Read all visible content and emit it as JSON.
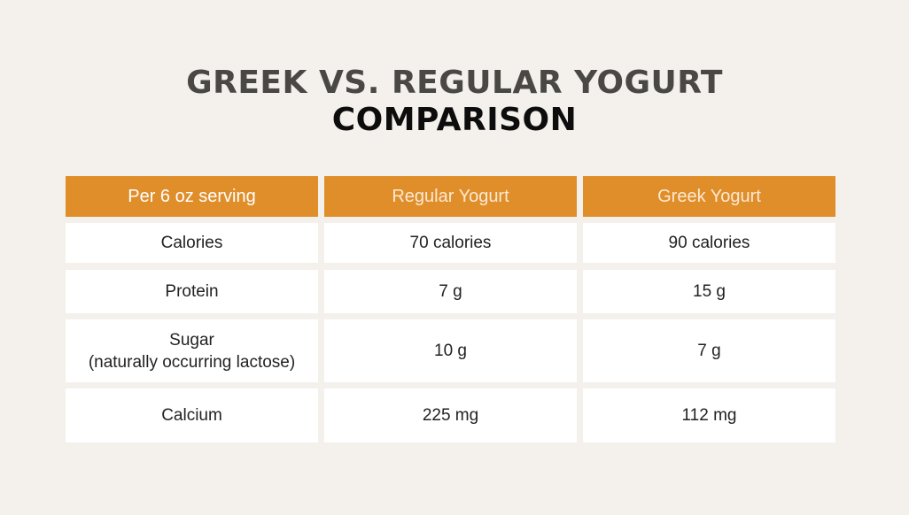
{
  "title": {
    "line1": "GREEK VS. REGULAR YOGURT",
    "line2": "COMPARISON"
  },
  "colors": {
    "background": "#f4f1ec",
    "header_fill": "#e08e2a",
    "cell_fill": "#ffffff"
  },
  "table": {
    "headers": [
      "Per 6 oz serving",
      "Regular Yogurt",
      "Greek Yogurt"
    ],
    "rows": [
      {
        "label": "Calories",
        "sublabel": "",
        "regular": "70 calories",
        "greek": "90 calories"
      },
      {
        "label": "Protein",
        "sublabel": "",
        "regular": "7 g",
        "greek": "15 g"
      },
      {
        "label": "Sugar",
        "sublabel": "(naturally occurring lactose)",
        "regular": "10 g",
        "greek": "7 g"
      },
      {
        "label": "Calcium",
        "sublabel": "",
        "regular": "225 mg",
        "greek": "112 mg"
      }
    ]
  }
}
